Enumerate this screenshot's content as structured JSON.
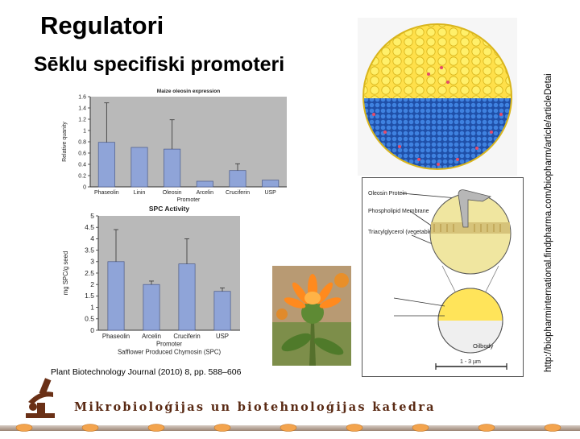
{
  "slide": {
    "title": "Regulatori",
    "subtitle": "Sēklu specifiski promoteri",
    "citation": "Plant Biotechnology Journal (2010) 8, pp. 588–606",
    "source_url": "http://biopharminternational.findpharma.com/biopharm/article/articleDetai",
    "footer_text": "Mikrobioloģijas un biotehnoloģijas katedra"
  },
  "chart_data": [
    {
      "type": "bar",
      "title": "Maize oleosin expression",
      "xlabel": "Promoter",
      "ylabel": "Relative quanity",
      "categories": [
        "Phaseolin",
        "Linin",
        "Oleosin",
        "Arcelin",
        "Cruciferin",
        "USP"
      ],
      "values": [
        0.79,
        0.7,
        0.67,
        0.1,
        0.29,
        0.12
      ],
      "errors": [
        0.7,
        0.0,
        0.52,
        0.0,
        0.12,
        0.0
      ],
      "ylim": [
        0,
        1.6
      ],
      "yticks": [
        "0",
        "0.2",
        "0.4",
        "0.6",
        "0.8",
        "1",
        "1.2",
        "1.4",
        "1.6"
      ],
      "bar_color": "#8fa4d8",
      "plot_background": "#b9b9b9"
    },
    {
      "type": "bar",
      "title": "SPC Activity",
      "xlabel": "Promoter",
      "ylabel": "mg SPC/g seed",
      "caption": "Safflower Produced Chymosin (SPC)",
      "categories": [
        "Phaseolin",
        "Arcelin",
        "Cruciferin",
        "USP"
      ],
      "values": [
        3.0,
        2.0,
        2.9,
        1.7
      ],
      "errors": [
        1.4,
        0.15,
        1.1,
        0.15
      ],
      "ylim": [
        0,
        5
      ],
      "yticks": [
        "0",
        "0.5",
        "1",
        "1.5",
        "2",
        "2.5",
        "3",
        "3.5",
        "4",
        "4.5",
        "5"
      ],
      "bar_color": "#8fa4d8",
      "plot_background": "#b9b9b9"
    }
  ],
  "diagram": {
    "labels": [
      "Oleosin Protein",
      "Phospholipid Membrane",
      "Triacylglycerol (vegetable oil)",
      "Oilbody",
      "1 - 3 µm"
    ]
  },
  "colors": {
    "footer_brown": "#5a2a14",
    "footer_orange": "#f3a44e",
    "oilbody_yellow": "#ffe04a",
    "oilbody_blue": "#1f5fc8"
  }
}
